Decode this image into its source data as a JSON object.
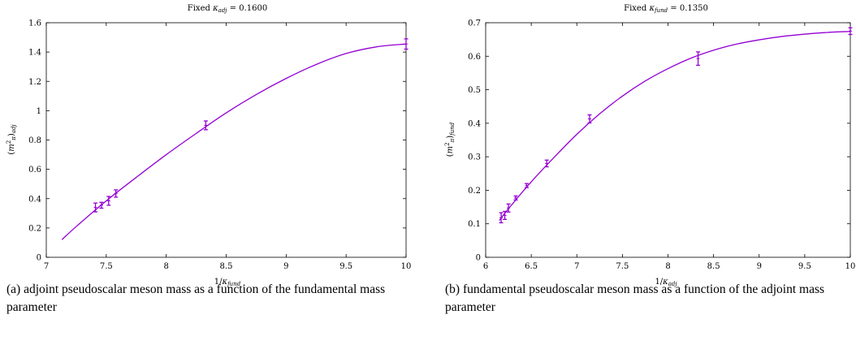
{
  "chart_data": [
    {
      "type": "line",
      "title": "Fixed κ_adj = 0.1600",
      "xlabel": "1/κ_fund",
      "ylabel": "(m²_π)_adj",
      "xlim": [
        7,
        10
      ],
      "ylim": [
        0,
        1.6
      ],
      "xticks": [
        7,
        7.5,
        8,
        8.5,
        9,
        9.5,
        10
      ],
      "xtick_labels": [
        "7",
        "7.5",
        "8",
        "8.5",
        "9",
        "9.5",
        "10"
      ],
      "yticks": [
        0,
        0.2,
        0.4,
        0.6,
        0.8,
        1,
        1.2,
        1.4,
        1.6
      ],
      "ytick_labels": [
        "0",
        "0.2",
        "0.4",
        "0.6",
        "0.8",
        "1",
        "1.2",
        "1.4",
        "1.6"
      ],
      "grid": false,
      "legend": "none",
      "color": "#9400d3",
      "points": [
        {
          "x": 7.41,
          "y": 0.34,
          "err": 0.03
        },
        {
          "x": 7.46,
          "y": 0.355,
          "err": 0.02
        },
        {
          "x": 7.52,
          "y": 0.385,
          "err": 0.03
        },
        {
          "x": 7.58,
          "y": 0.435,
          "err": 0.025
        },
        {
          "x": 8.33,
          "y": 0.9,
          "err": 0.03
        },
        {
          "x": 10.0,
          "y": 1.455,
          "err": 0.035
        }
      ],
      "fit_curve": {
        "x": [
          7.13,
          7.25,
          7.5,
          7.75,
          8.0,
          8.25,
          8.5,
          8.75,
          9.0,
          9.25,
          9.5,
          9.75,
          10.0
        ],
        "y": [
          0.12,
          0.21,
          0.385,
          0.545,
          0.7,
          0.845,
          0.985,
          1.11,
          1.22,
          1.315,
          1.39,
          1.435,
          1.455
        ]
      },
      "caption": "(a) adjoint pseudoscalar meson mass as a function of the fundamental mass parameter"
    },
    {
      "type": "line",
      "title": "Fixed κ_fund = 0.1350",
      "xlabel": "1/κ_adj",
      "ylabel": "(m²_π)_fund",
      "xlim": [
        6,
        10
      ],
      "ylim": [
        0,
        0.7
      ],
      "xticks": [
        6,
        6.5,
        7,
        7.5,
        8,
        8.5,
        9,
        9.5,
        10
      ],
      "xtick_labels": [
        "6",
        "6.5",
        "7",
        "7.5",
        "8",
        "8.5",
        "9",
        "9.5",
        "10"
      ],
      "yticks": [
        0,
        0.1,
        0.2,
        0.3,
        0.4,
        0.5,
        0.6,
        0.7
      ],
      "ytick_labels": [
        "0",
        "0.1",
        "0.2",
        "0.3",
        "0.4",
        "0.5",
        "0.6",
        "0.7"
      ],
      "grid": false,
      "legend": "none",
      "color": "#9400d3",
      "points": [
        {
          "x": 6.17,
          "y": 0.118,
          "err": 0.015
        },
        {
          "x": 6.21,
          "y": 0.125,
          "err": 0.012
        },
        {
          "x": 6.25,
          "y": 0.147,
          "err": 0.012
        },
        {
          "x": 6.33,
          "y": 0.177,
          "err": 0.006
        },
        {
          "x": 6.45,
          "y": 0.214,
          "err": 0.006
        },
        {
          "x": 6.67,
          "y": 0.28,
          "err": 0.01
        },
        {
          "x": 7.14,
          "y": 0.413,
          "err": 0.012
        },
        {
          "x": 8.33,
          "y": 0.593,
          "err": 0.02
        },
        {
          "x": 10.0,
          "y": 0.675,
          "err": 0.01
        }
      ],
      "fit_curve": {
        "x": [
          6.15,
          6.25,
          6.5,
          6.75,
          7.0,
          7.25,
          7.5,
          7.75,
          8.0,
          8.25,
          8.5,
          8.75,
          9.0,
          9.25,
          9.5,
          9.75,
          10.0
        ],
        "y": [
          0.11,
          0.145,
          0.225,
          0.298,
          0.367,
          0.428,
          0.481,
          0.526,
          0.563,
          0.594,
          0.618,
          0.636,
          0.649,
          0.659,
          0.666,
          0.671,
          0.674
        ]
      },
      "caption": "(b) fundamental pseudoscalar meson mass as a function of the adjoint mass parameter"
    }
  ]
}
